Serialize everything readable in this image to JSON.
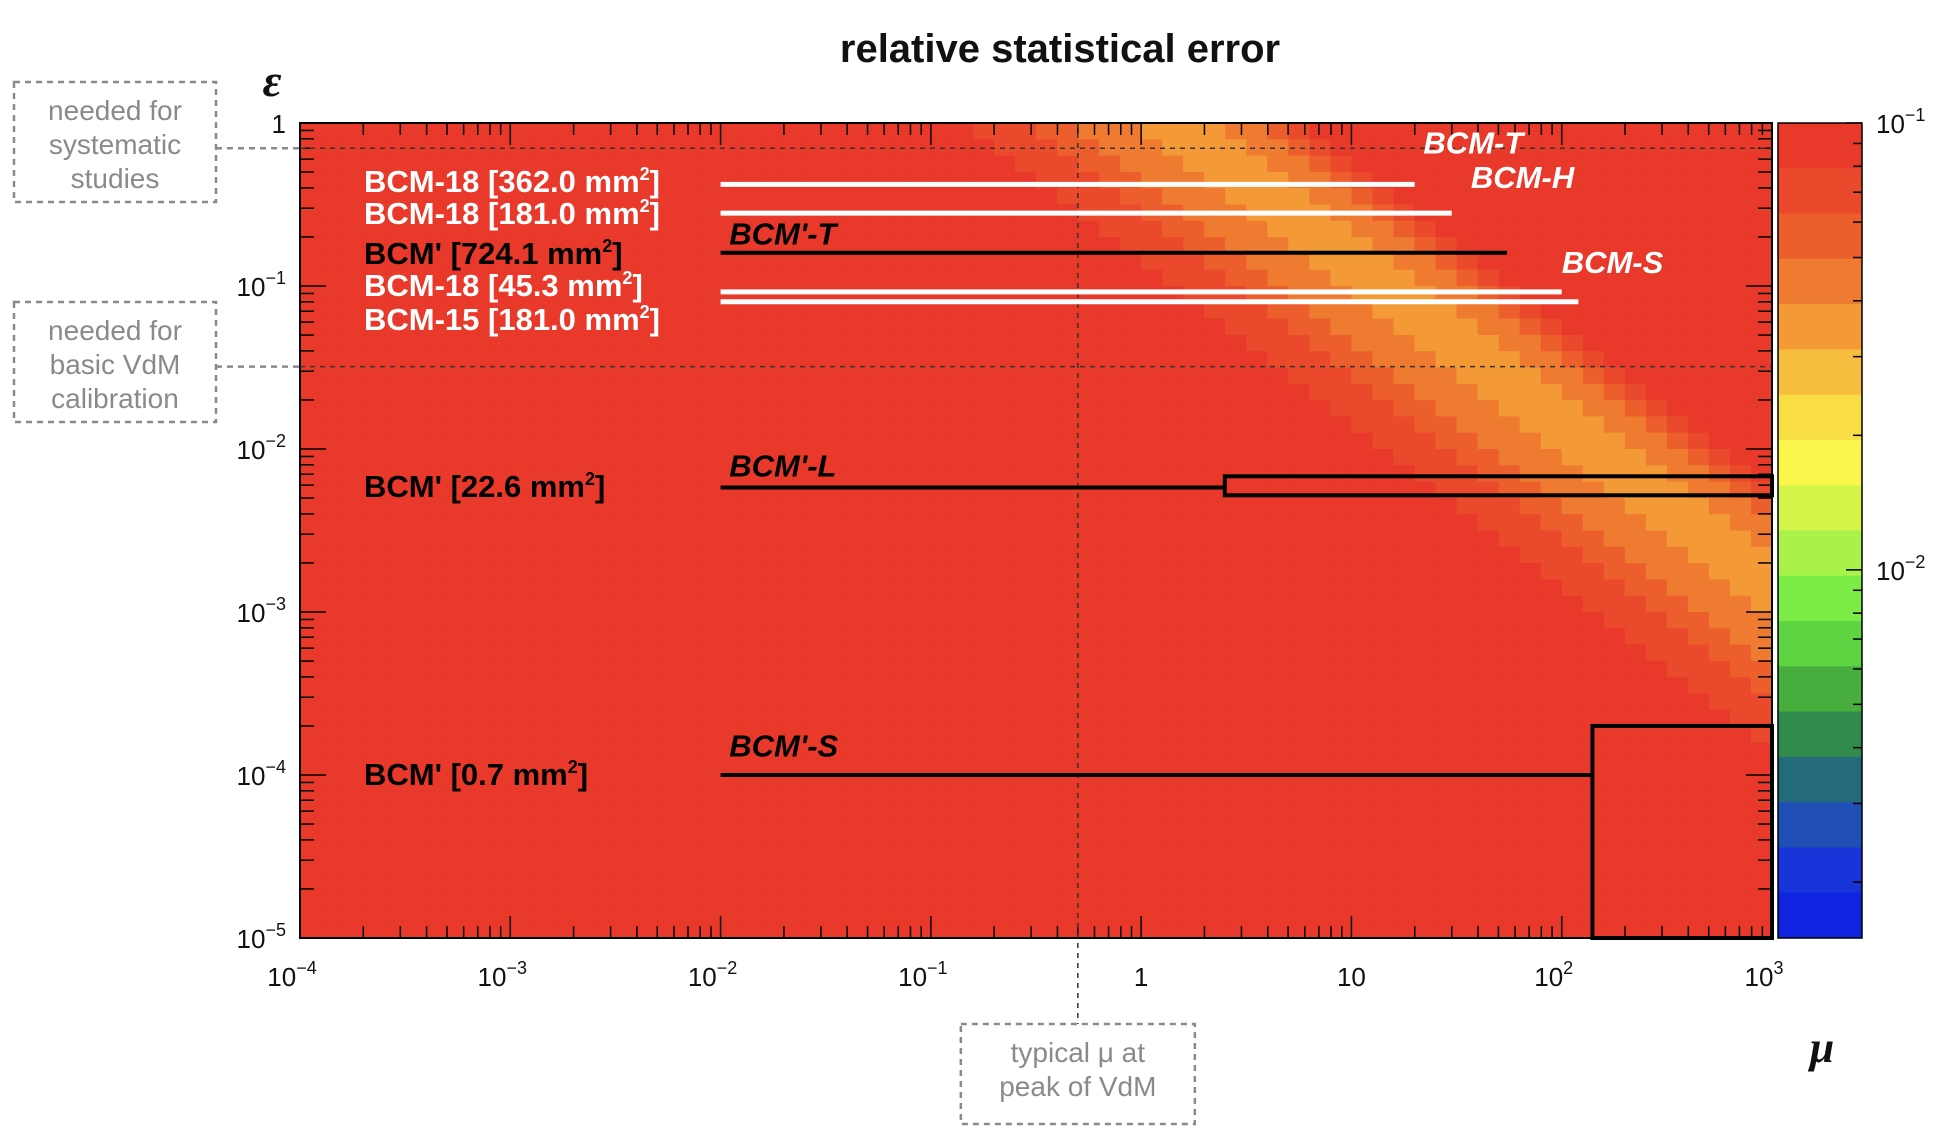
{
  "chart_data": {
    "type": "heatmap",
    "title": "relative statistical error",
    "xlabel": "μ",
    "ylabel": "ε",
    "x_scale": "log",
    "y_scale": "log",
    "xlim": [
      0.0001,
      1000
    ],
    "ylim": [
      1e-05,
      1
    ],
    "x_ticks": [
      {
        "base": "10",
        "exp": "−4"
      },
      {
        "base": "10",
        "exp": "−3"
      },
      {
        "base": "10",
        "exp": "−2"
      },
      {
        "base": "10",
        "exp": "−1"
      },
      {
        "base": "1",
        "exp": ""
      },
      {
        "base": "10",
        "exp": ""
      },
      {
        "base": "10",
        "exp": "2"
      },
      {
        "base": "10",
        "exp": "3"
      }
    ],
    "y_ticks": [
      {
        "base": "10",
        "exp": "−5"
      },
      {
        "base": "10",
        "exp": "−4"
      },
      {
        "base": "10",
        "exp": "−3"
      },
      {
        "base": "10",
        "exp": "−2"
      },
      {
        "base": "10",
        "exp": "−1"
      },
      {
        "base": "1",
        "exp": ""
      }
    ],
    "colorbar": {
      "scale": "log",
      "range": [
        0.0015,
        0.1
      ],
      "ticks": [
        {
          "base": "10",
          "exp": "−1",
          "value": 0.1
        },
        {
          "base": "10",
          "exp": "−2",
          "value": 0.01
        }
      ],
      "colors": [
        "#e8392a",
        "#ea4a2b",
        "#ec5f2d",
        "#ef7b31",
        "#f39a37",
        "#f6bd3e",
        "#f9dd45",
        "#fbf64b",
        "#d6f54a",
        "#a9f249",
        "#7ced47",
        "#5fd442",
        "#47ae3e",
        "#2f8a4c",
        "#236b7a",
        "#1f4fb4",
        "#1833d8",
        "#1023e0"
      ]
    },
    "reference_lines": [
      {
        "axis": "y",
        "value": 0.7,
        "note": [
          "needed for",
          "systematic",
          "studies"
        ]
      },
      {
        "axis": "y",
        "value": 0.032,
        "note": [
          "needed for",
          "basic VdM",
          "calibration"
        ]
      },
      {
        "axis": "x",
        "value": 0.5,
        "note": [
          "typical μ at",
          "peak of VdM"
        ]
      }
    ],
    "detectors": [
      {
        "name": "BCM-18",
        "area": "362.0",
        "unit": "mm",
        "area_exp": "2",
        "eps": 0.42,
        "mu_range": [
          0.01,
          20
        ],
        "color": "#ffffff"
      },
      {
        "name": "BCM-18",
        "area": "181.0",
        "unit": "mm",
        "area_exp": "2",
        "eps": 0.28,
        "mu_range": [
          0.01,
          30
        ],
        "color": "#ffffff"
      },
      {
        "name": "BCM'",
        "area": "724.1",
        "unit": "mm",
        "area_exp": "2",
        "eps": 0.16,
        "mu_range": [
          0.01,
          55
        ],
        "color": "#000000"
      },
      {
        "name": "BCM-18",
        "area": "45.3",
        "unit": "mm",
        "area_exp": "2",
        "eps": 0.092,
        "mu_range": [
          0.01,
          100
        ],
        "color": "#ffffff"
      },
      {
        "name": "BCM-15",
        "area": "181.0",
        "unit": "mm",
        "area_exp": "2",
        "eps": 0.08,
        "mu_range": [
          0.01,
          120
        ],
        "color": "#ffffff"
      },
      {
        "name": "BCM'",
        "area": "22.6",
        "unit": "mm",
        "area_exp": "2",
        "eps": 0.0058,
        "mu_range": [
          0.01,
          2.5
        ],
        "color": "#000000"
      },
      {
        "name": "BCM'",
        "area": "0.7",
        "unit": "mm",
        "area_exp": "2",
        "eps": 0.0001,
        "mu_range": [
          0.01,
          140
        ],
        "color": "#000000"
      }
    ],
    "regions": [
      {
        "label": "BCM'-L",
        "mu_range": [
          2.5,
          1000
        ],
        "eps_range": [
          0.0052,
          0.0068
        ]
      },
      {
        "label": "BCM'-S",
        "mu_range": [
          140,
          1000
        ],
        "eps_range": [
          1e-05,
          0.0002
        ]
      }
    ],
    "region_tags": [
      {
        "label": "BCM'-T",
        "mu": 0.011,
        "eps": 0.18,
        "color": "#000000"
      },
      {
        "label": "BCM'-L",
        "mu": 0.011,
        "eps": 0.0068,
        "color": "#000000"
      },
      {
        "label": "BCM'-S",
        "mu": 0.011,
        "eps": 0.00013,
        "color": "#000000"
      },
      {
        "label": "BCM-T",
        "mu": 22,
        "eps": 0.65,
        "color": "#ffffff"
      },
      {
        "label": "BCM-H",
        "mu": 37,
        "eps": 0.4,
        "color": "#ffffff"
      },
      {
        "label": "BCM-S",
        "mu": 100,
        "eps": 0.12,
        "color": "#ffffff"
      }
    ]
  }
}
